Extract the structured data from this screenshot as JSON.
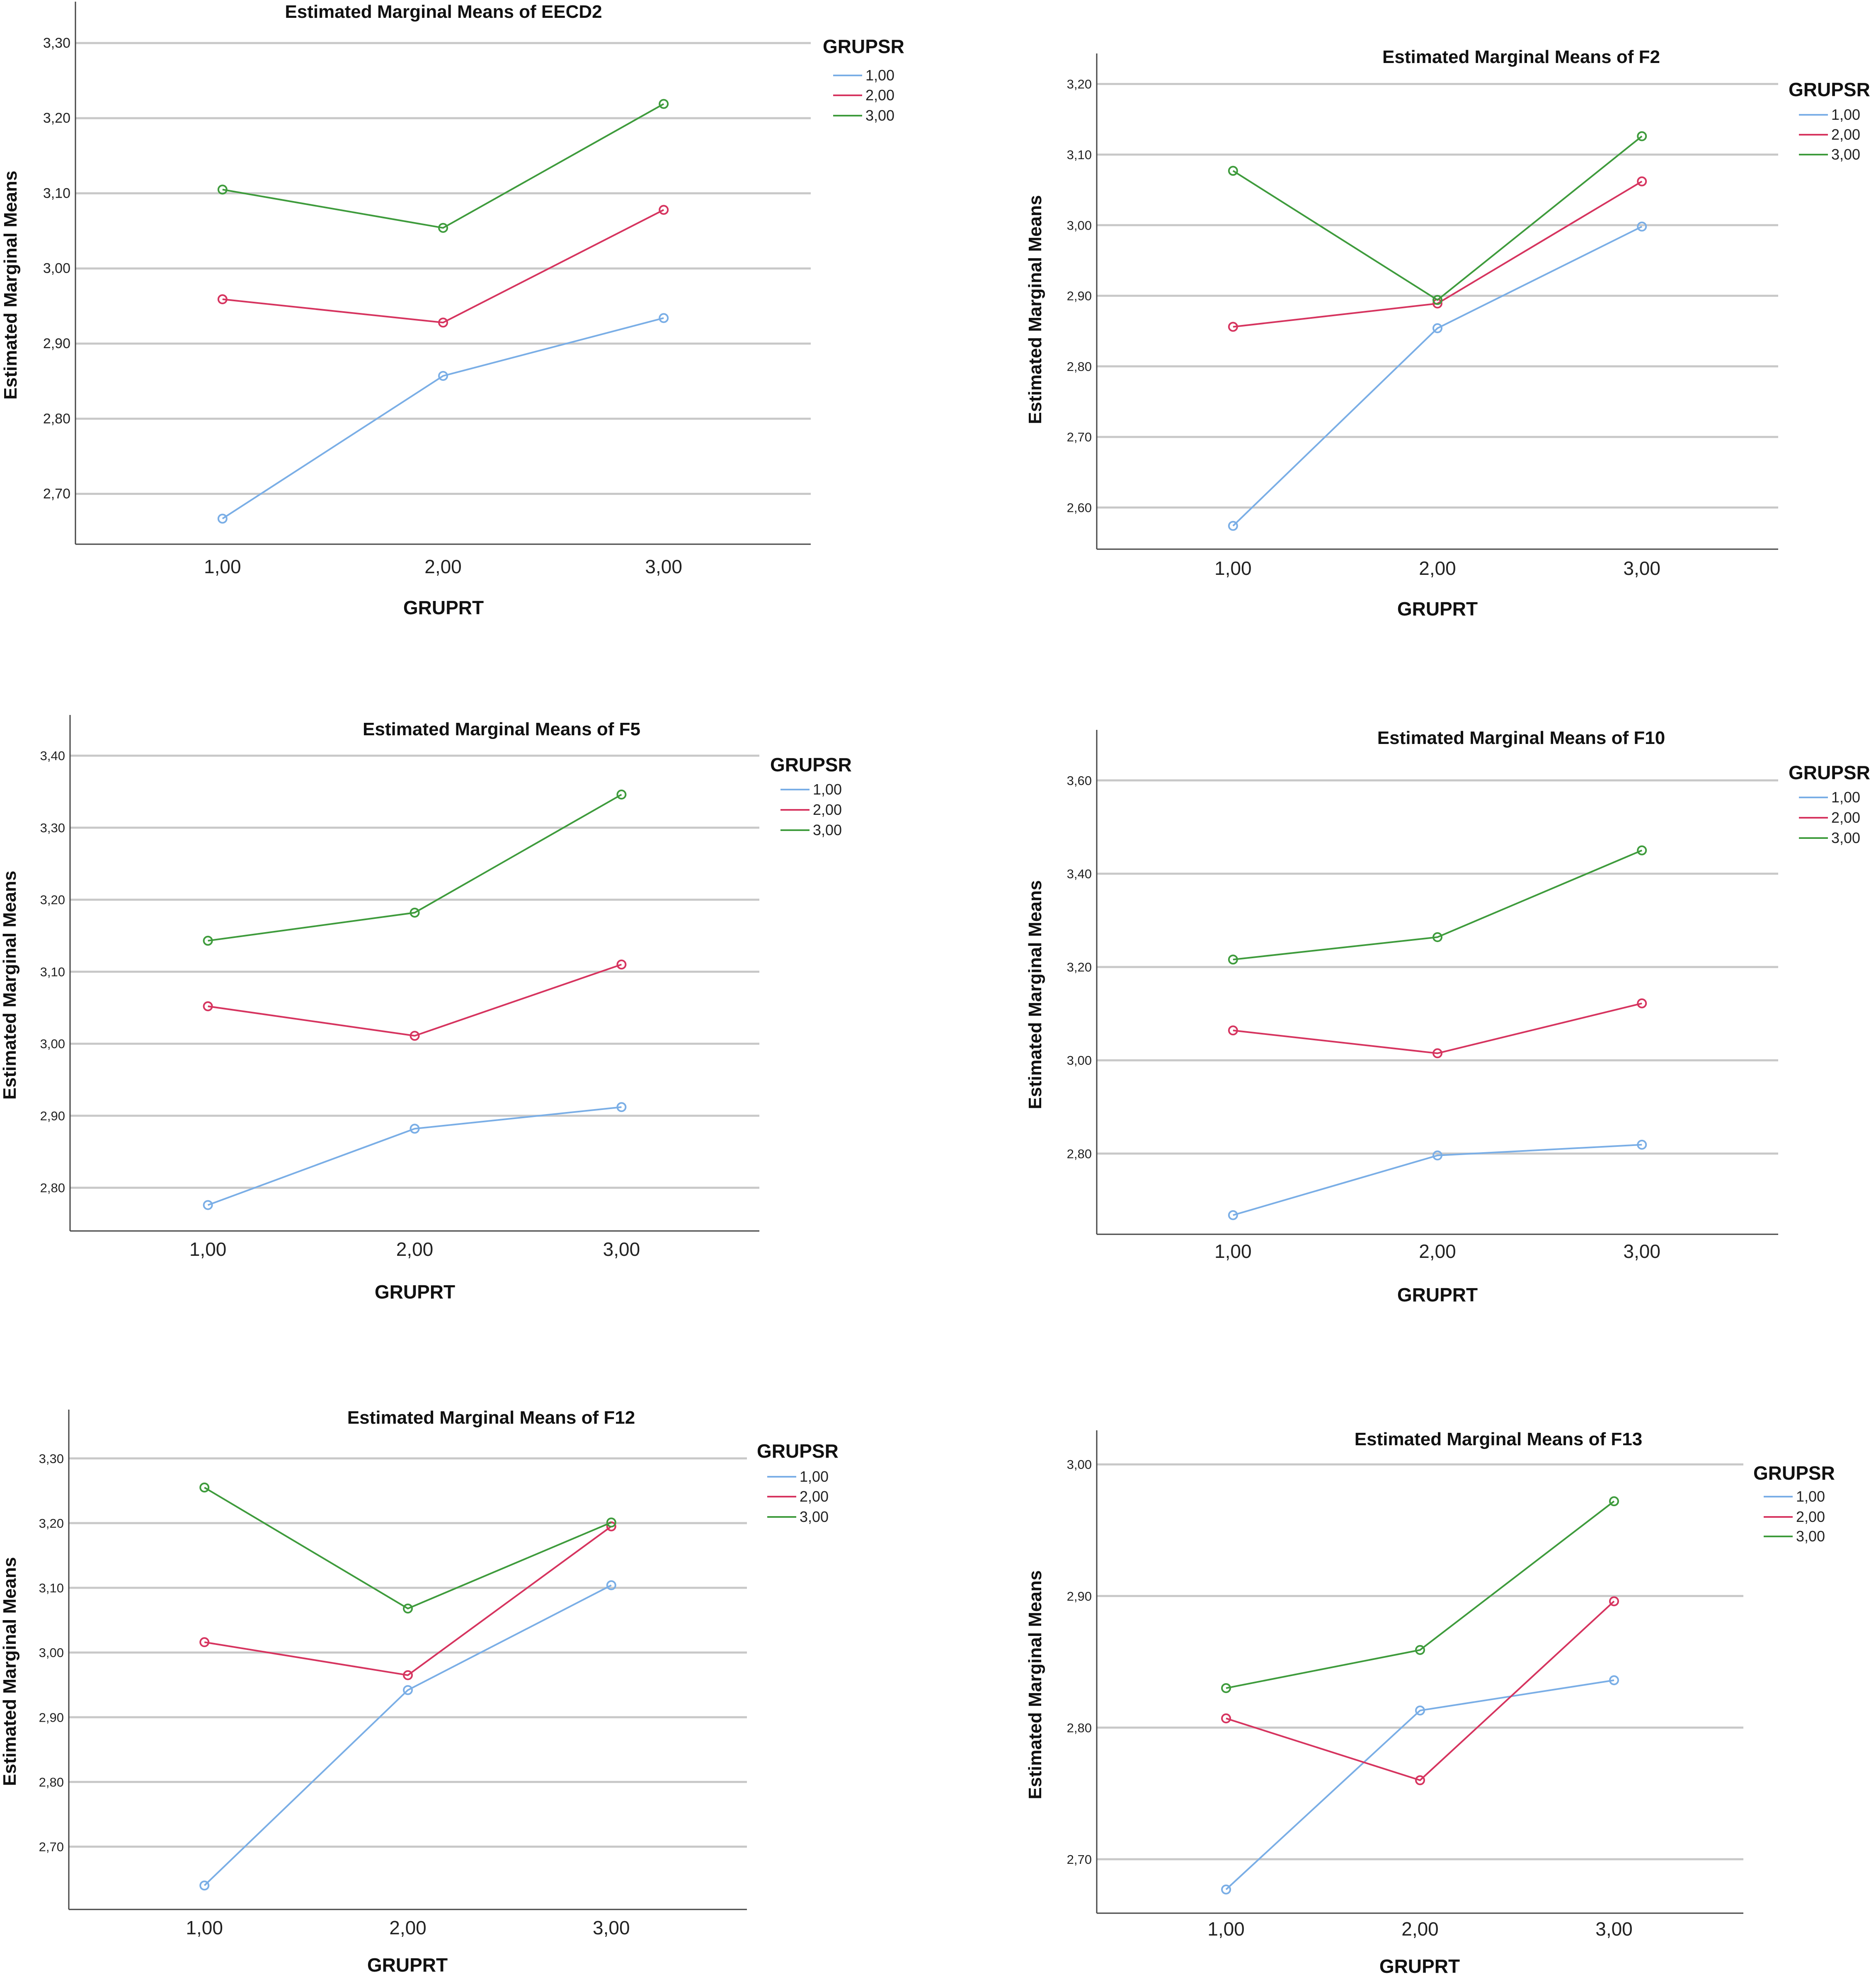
{
  "series_colors": [
    "#7aaee6",
    "#d6345f",
    "#3e9b3c"
  ],
  "chart_data": [
    {
      "type": "line",
      "title": "Estimated Marginal Means of EECD2",
      "xlabel": "GRUPRT",
      "ylabel": "Estimated Marginal Means",
      "categories": [
        "1,00",
        "2,00",
        "3,00"
      ],
      "yticks": [
        "2,70",
        "2,80",
        "2,90",
        "3,00",
        "3,10",
        "3,20",
        "3,30"
      ],
      "ylim": [
        2.633,
        3.322
      ],
      "legend_title": "GRUPSR",
      "legend_position": "top-right",
      "series": [
        {
          "name": "1,00",
          "values": [
            2.667,
            2.857,
            2.934
          ]
        },
        {
          "name": "2,00",
          "values": [
            2.959,
            2.928,
            3.078
          ]
        },
        {
          "name": "3,00",
          "values": [
            3.105,
            3.054,
            3.219
          ]
        }
      ]
    },
    {
      "type": "line",
      "title": "Estimated Marginal Means of F2",
      "xlabel": "GRUPRT",
      "ylabel": "Estimated Marginal Means",
      "categories": [
        "1,00",
        "2,00",
        "3,00"
      ],
      "yticks": [
        "2,60",
        "2,70",
        "2,80",
        "2,90",
        "3,00",
        "3,10",
        "3,20"
      ],
      "ylim": [
        2.541,
        3.208
      ],
      "legend_title": "GRUPSR",
      "legend_position": "top-right",
      "series": [
        {
          "name": "1,00",
          "values": [
            2.574,
            2.854,
            2.998
          ]
        },
        {
          "name": "2,00",
          "values": [
            2.856,
            2.889,
            3.062
          ]
        },
        {
          "name": "3,00",
          "values": [
            3.077,
            2.894,
            3.126
          ]
        }
      ]
    },
    {
      "type": "line",
      "title": "Estimated Marginal Means of F5",
      "xlabel": "GRUPRT",
      "ylabel": "Estimated Marginal Means",
      "categories": [
        "1,00",
        "2,00",
        "3,00"
      ],
      "yticks": [
        "2,80",
        "2,90",
        "3,00",
        "3,10",
        "3,20",
        "3,30",
        "3,40"
      ],
      "ylim": [
        2.74,
        3.422
      ],
      "legend_title": "GRUPSR",
      "legend_position": "top-right",
      "series": [
        {
          "name": "1,00",
          "values": [
            2.776,
            2.882,
            2.912
          ]
        },
        {
          "name": "2,00",
          "values": [
            3.052,
            3.011,
            3.11
          ]
        },
        {
          "name": "3,00",
          "values": [
            3.143,
            3.182,
            3.346
          ]
        }
      ]
    },
    {
      "type": "line",
      "title": "Estimated Marginal Means of F10",
      "xlabel": "GRUPRT",
      "ylabel": "Estimated Marginal Means",
      "categories": [
        "1,00",
        "2,00",
        "3,00"
      ],
      "yticks": [
        "2,80",
        "3,00",
        "3,20",
        "3,40",
        "3,60"
      ],
      "ylim": [
        2.627,
        3.655
      ],
      "legend_title": "GRUPSR",
      "legend_position": "top-right",
      "series": [
        {
          "name": "1,00",
          "values": [
            2.668,
            2.796,
            2.819
          ]
        },
        {
          "name": "2,00",
          "values": [
            3.064,
            3.015,
            3.122
          ]
        },
        {
          "name": "3,00",
          "values": [
            3.216,
            3.264,
            3.45
          ]
        }
      ]
    },
    {
      "type": "line",
      "title": "Estimated Marginal Means of F12",
      "xlabel": "GRUPRT",
      "ylabel": "Estimated Marginal Means",
      "categories": [
        "1,00",
        "2,00",
        "3,00"
      ],
      "yticks": [
        "2,70",
        "2,80",
        "2,90",
        "3,00",
        "3,10",
        "3,20",
        "3,30"
      ],
      "ylim": [
        2.603,
        3.337
      ],
      "legend_title": "GRUPSR",
      "legend_position": "top-right",
      "series": [
        {
          "name": "1,00",
          "values": [
            2.64,
            2.942,
            3.104
          ]
        },
        {
          "name": "2,00",
          "values": [
            3.016,
            2.965,
            3.195
          ]
        },
        {
          "name": "3,00",
          "values": [
            3.255,
            3.068,
            3.201
          ]
        }
      ]
    },
    {
      "type": "line",
      "title": "Estimated Marginal Means of F13",
      "xlabel": "GRUPRT",
      "ylabel": "Estimated Marginal Means",
      "categories": [
        "1,00",
        "2,00",
        "3,00"
      ],
      "yticks": [
        "2,70",
        "2,80",
        "2,90",
        "3,00"
      ],
      "ylim": [
        2.659,
        3.007
      ],
      "legend_title": "GRUPSR",
      "legend_position": "top-right",
      "series": [
        {
          "name": "1,00",
          "values": [
            2.677,
            2.813,
            2.836
          ]
        },
        {
          "name": "2,00",
          "values": [
            2.807,
            2.76,
            2.896
          ]
        },
        {
          "name": "3,00",
          "values": [
            2.83,
            2.859,
            2.972
          ]
        }
      ]
    }
  ]
}
